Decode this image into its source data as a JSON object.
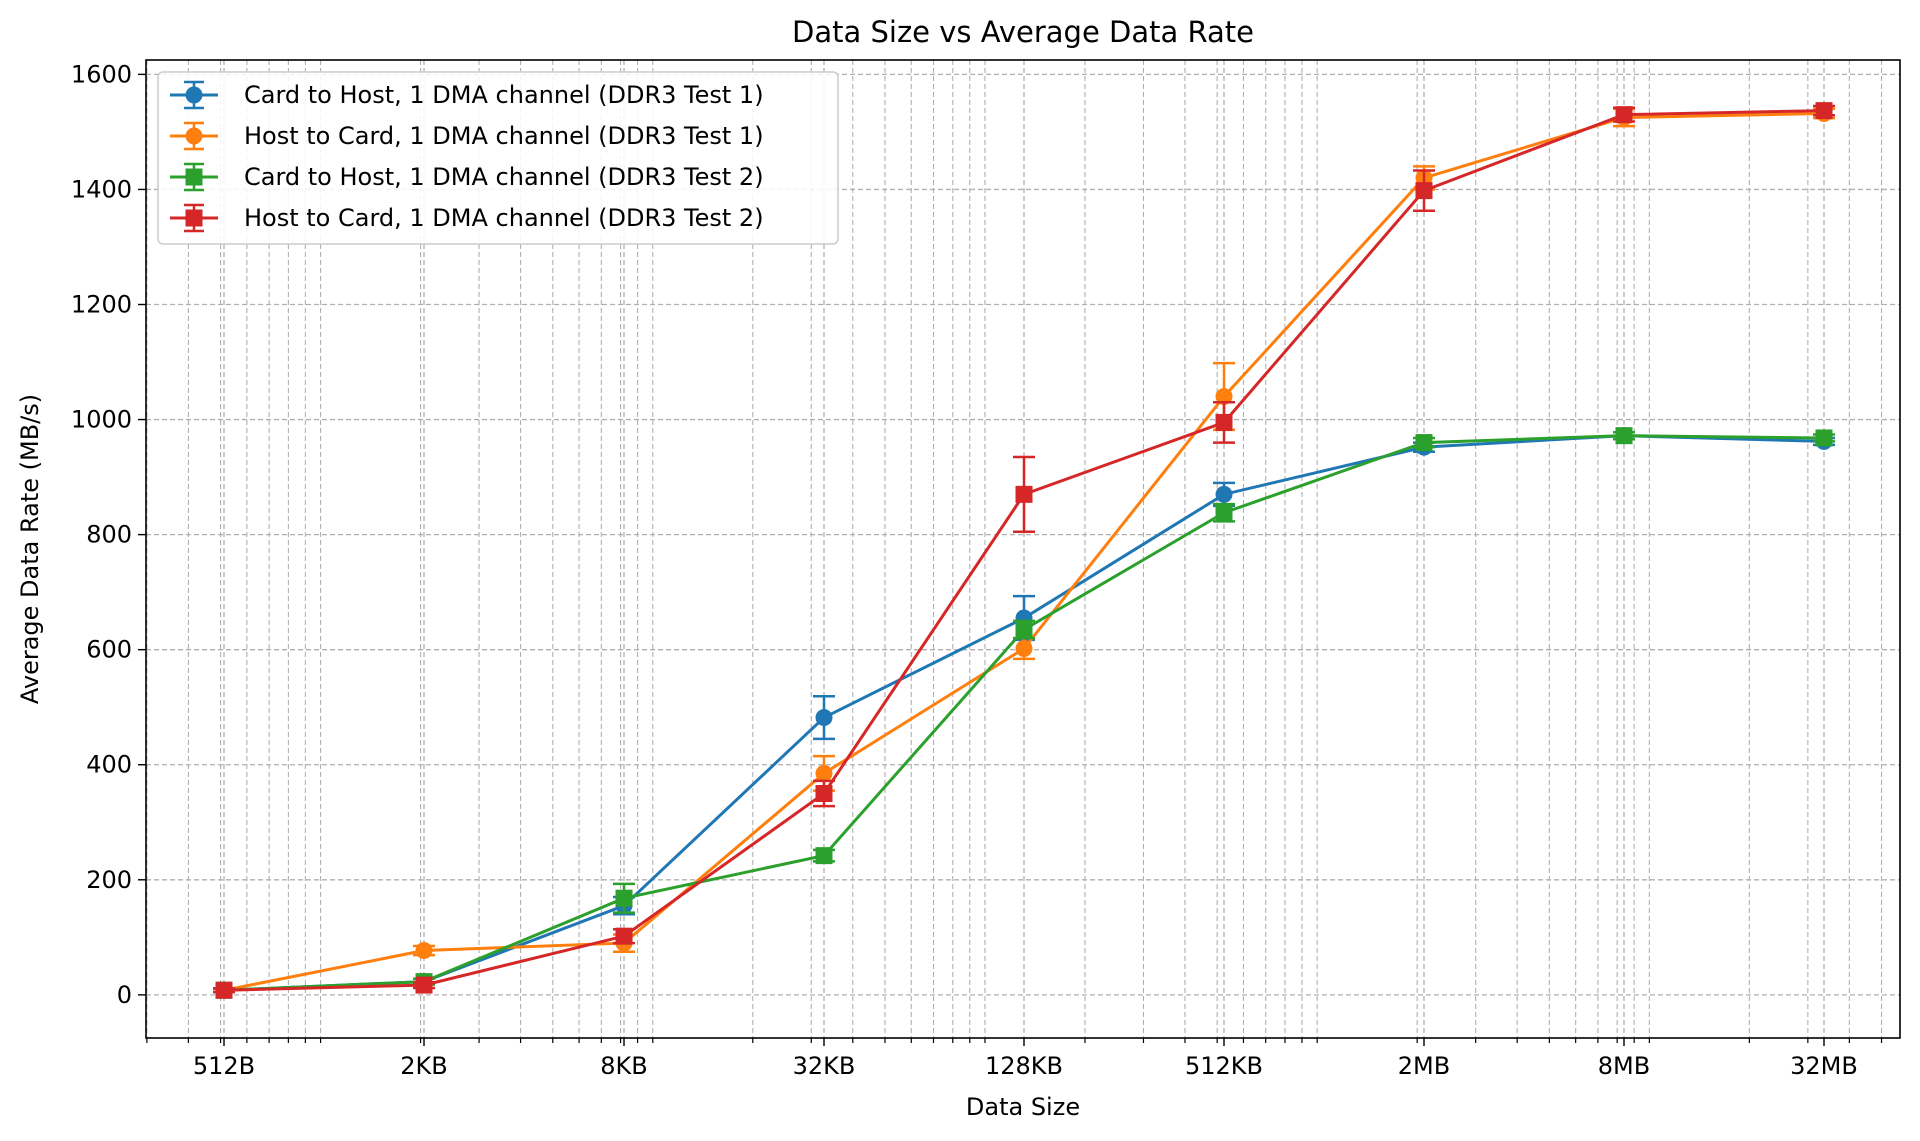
{
  "chart_data": {
    "type": "line",
    "title": "Data Size vs Average Data Rate",
    "xlabel": "Data Size",
    "ylabel": "Average Data Rate (MB/s)",
    "x_scale": "log2",
    "categories": [
      "512B",
      "2KB",
      "8KB",
      "32KB",
      "128KB",
      "512KB",
      "2MB",
      "8MB",
      "32MB"
    ],
    "x_bytes": [
      512,
      2048,
      8192,
      32768,
      131072,
      524288,
      2097152,
      8388608,
      33554432
    ],
    "ylim": [
      -75,
      1625
    ],
    "yticks": [
      0,
      200,
      400,
      600,
      800,
      1000,
      1200,
      1400,
      1600
    ],
    "grid": true,
    "legend_position": "top-left",
    "series": [
      {
        "name": "Card to Host, 1 DMA channel (DDR3 Test 1)",
        "color": "#1f77b4",
        "marker": "circle",
        "values": [
          8,
          23,
          155,
          482,
          655,
          870,
          952,
          972,
          962
        ],
        "errors": [
          3,
          5,
          15,
          37,
          38,
          20,
          8,
          6,
          6
        ]
      },
      {
        "name": "Host to Card, 1 DMA channel (DDR3 Test 1)",
        "color": "#ff7f0e",
        "marker": "circle",
        "values": [
          8,
          77,
          90,
          385,
          602,
          1040,
          1420,
          1525,
          1532
        ],
        "errors": [
          3,
          8,
          15,
          30,
          18,
          58,
          20,
          15,
          8
        ]
      },
      {
        "name": "Card to Host, 1 DMA channel (DDR3 Test 2)",
        "color": "#2ca02c",
        "marker": "square",
        "values": [
          8,
          23,
          168,
          242,
          635,
          838,
          960,
          972,
          968
        ],
        "errors": [
          3,
          5,
          25,
          10,
          15,
          15,
          8,
          6,
          6
        ]
      },
      {
        "name": "Host to Card, 1 DMA channel (DDR3 Test 2)",
        "color": "#d62728",
        "marker": "square",
        "values": [
          8,
          17,
          102,
          350,
          870,
          995,
          1398,
          1530,
          1537
        ],
        "errors": [
          3,
          5,
          12,
          22,
          65,
          35,
          35,
          12,
          8
        ]
      }
    ]
  }
}
